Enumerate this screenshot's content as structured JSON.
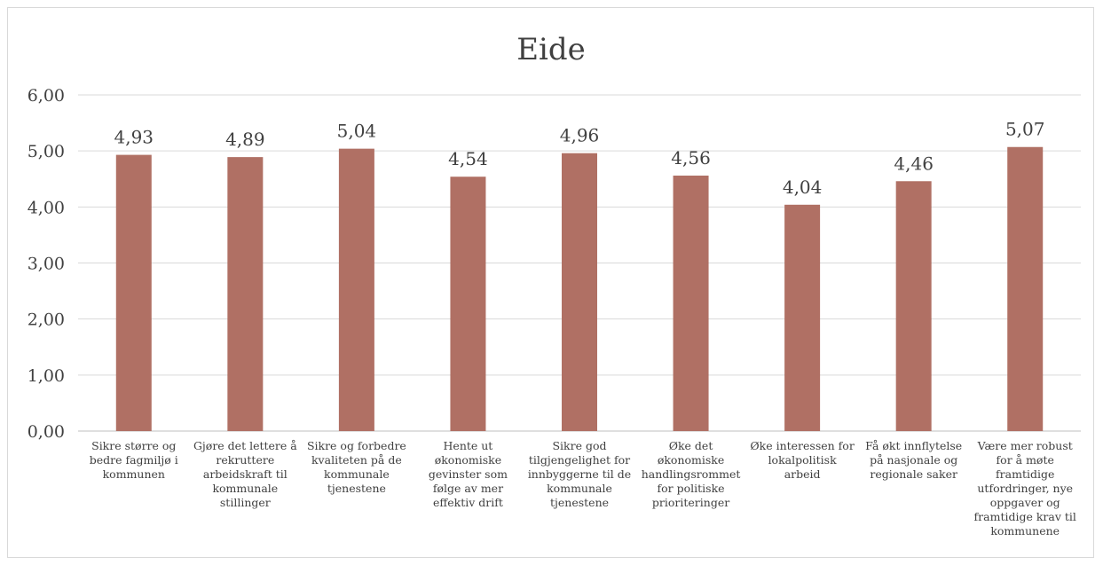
{
  "chart_data": {
    "type": "bar",
    "title": "Eide",
    "bar_color": "#b07064",
    "ylim": [
      0,
      6
    ],
    "yticks": [
      "0,00",
      "1,00",
      "2,00",
      "3,00",
      "4,00",
      "5,00",
      "6,00"
    ],
    "grid": true,
    "legend": "none",
    "categories": [
      [
        "Sikre større og",
        "bedre fagmiljø i",
        "kommunen"
      ],
      [
        "Gjøre det lettere å",
        "rekruttere",
        "arbeidskraft til",
        "kommunale",
        "stillinger"
      ],
      [
        "Sikre og forbedre",
        "kvaliteten på de",
        "kommunale",
        "tjenestene"
      ],
      [
        "Hente ut",
        "økonomiske",
        "gevinster som",
        "følge av mer",
        "effektiv drift"
      ],
      [
        "Sikre god",
        "tilgjengelighet for",
        "innbyggerne til de",
        "kommunale",
        "tjenestene"
      ],
      [
        "Øke det",
        "økonomiske",
        "handlingsrommet",
        "for politiske",
        "prioriteringer"
      ],
      [
        "Øke interessen for",
        "lokalpolitisk",
        "arbeid"
      ],
      [
        "Få økt innflytelse",
        "på nasjonale og",
        "regionale saker"
      ],
      [
        "Være mer robust",
        "for å møte",
        "framtidige",
        "utfordringer, nye",
        "oppgaver og",
        "framtidige krav til",
        "kommunene"
      ]
    ],
    "values": [
      4.93,
      4.89,
      5.04,
      4.54,
      4.96,
      4.56,
      4.04,
      4.46,
      5.07
    ],
    "value_labels": [
      "4,93",
      "4,89",
      "5,04",
      "4,54",
      "4,96",
      "4,56",
      "4,04",
      "4,46",
      "5,07"
    ]
  }
}
